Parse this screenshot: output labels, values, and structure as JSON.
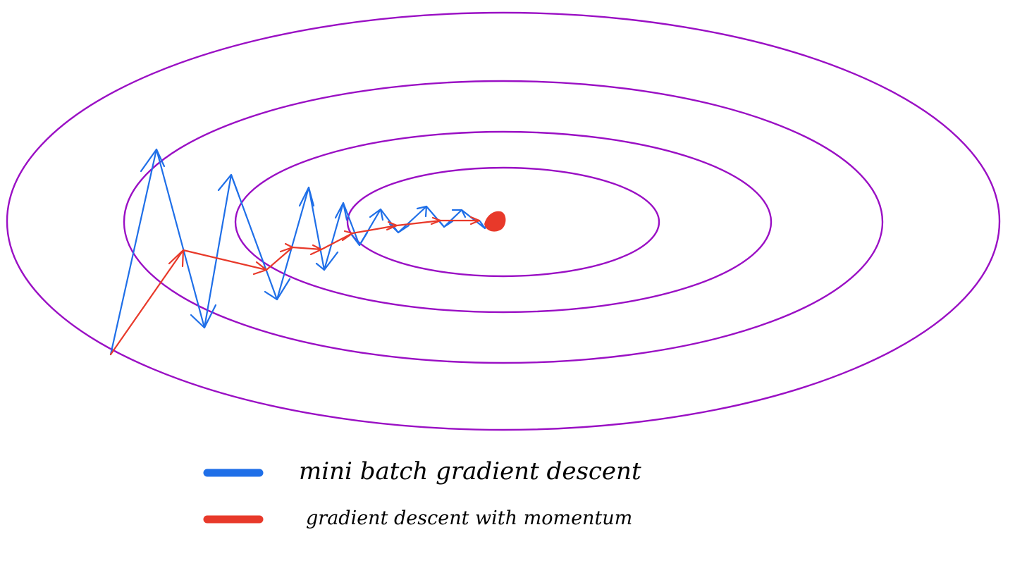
{
  "colors": {
    "contour": "#9a0fc4",
    "minibatch": "#1f6fe8",
    "momentum": "#e8392a",
    "minimum": "#e8392a",
    "text": "#000000"
  },
  "legend": {
    "items": [
      {
        "key": "minibatch",
        "label": "mini batch gradient descent",
        "color": "#1f6fe8"
      },
      {
        "key": "momentum",
        "label": "gradient descent with momentum",
        "color": "#e8392a"
      }
    ]
  }
}
